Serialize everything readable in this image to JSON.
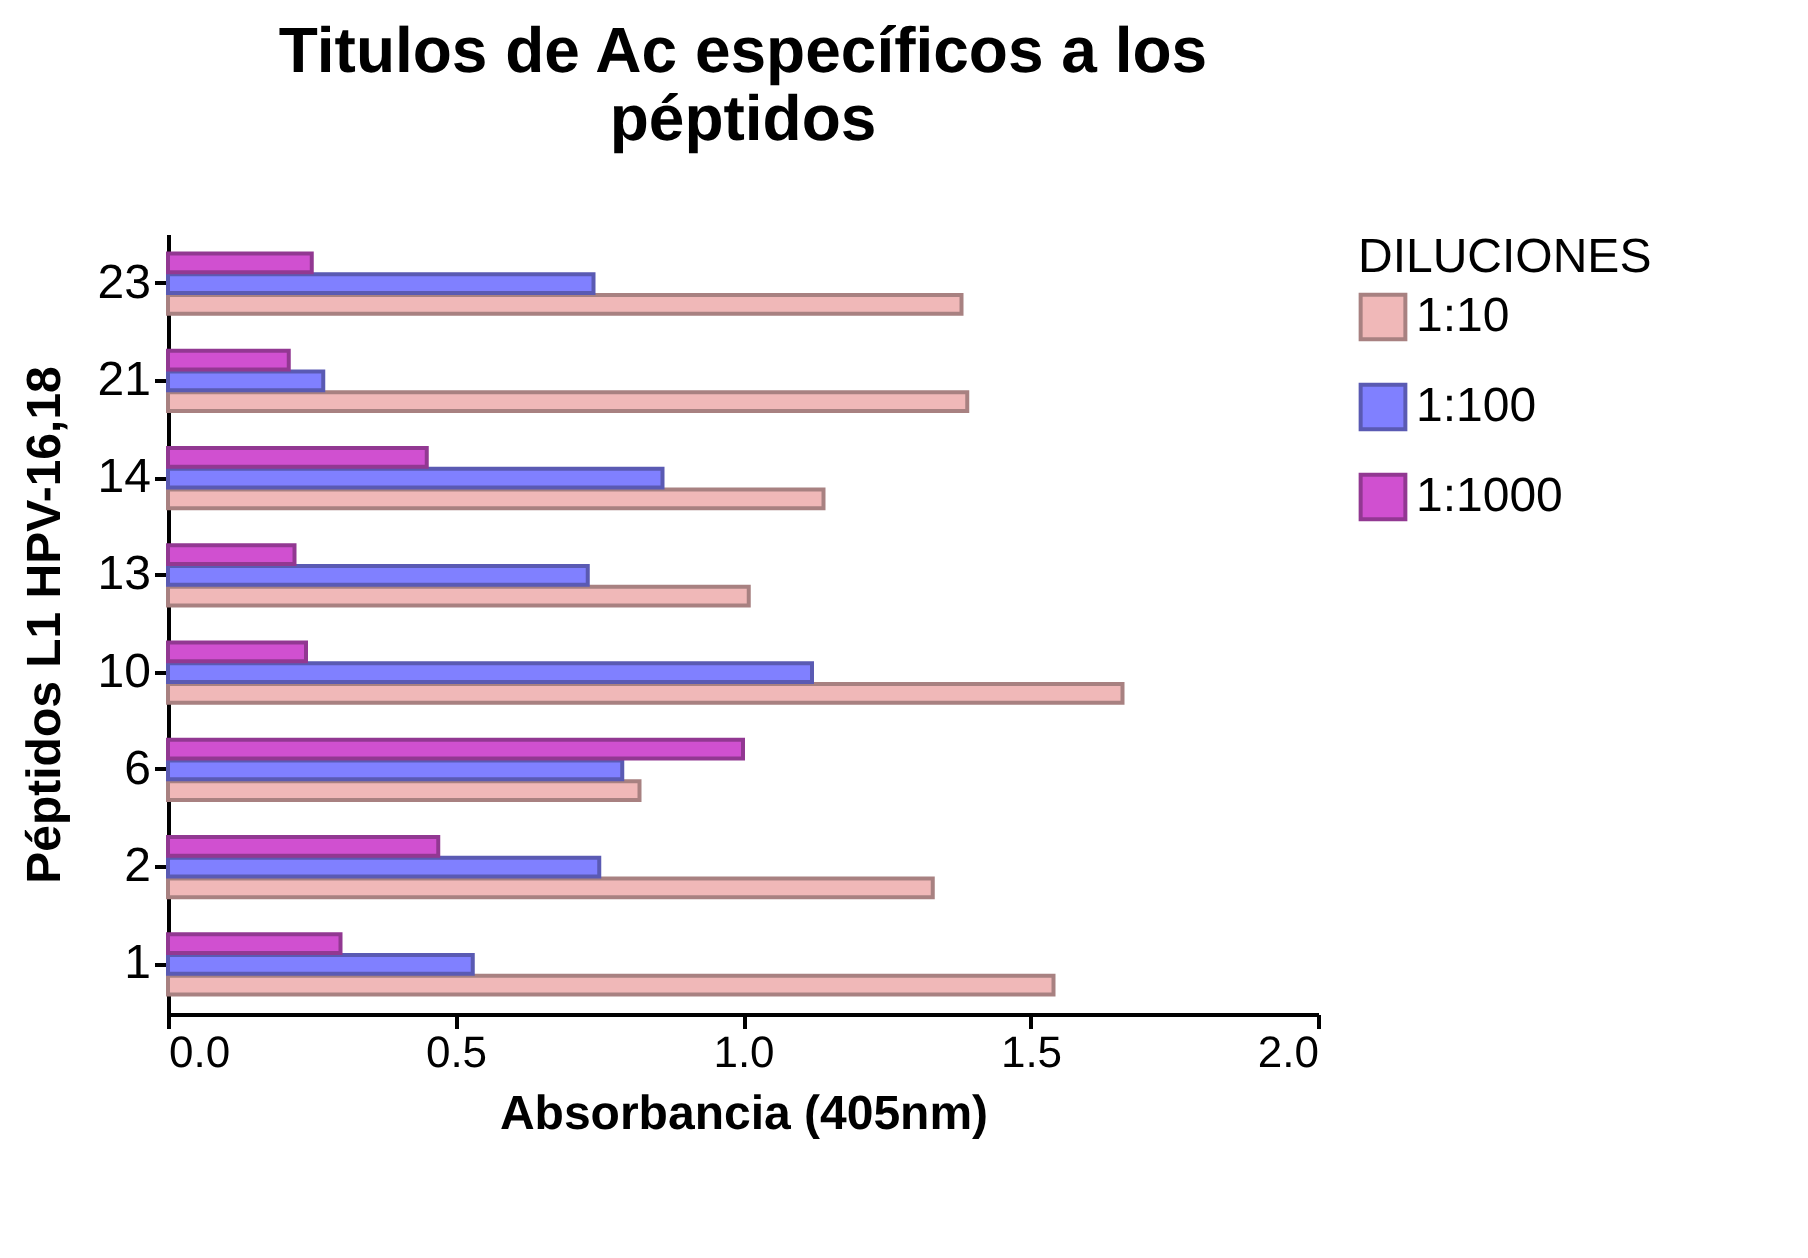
{
  "chart_data": {
    "type": "bar",
    "orientation": "horizontal",
    "title": "Titulos de Ac específicos a los péptidos",
    "xlabel": "Absorbancia (405nm)",
    "ylabel": "Péptidos L1 HPV-16,18",
    "legend_title": "DILUCIONES",
    "legend": "top right",
    "grid": false,
    "categories": [
      "23",
      "21",
      "14",
      "13",
      "10",
      "6",
      "2",
      "1"
    ],
    "series": [
      {
        "name": "1:10",
        "color": "#f0b8b8",
        "values": [
          1.38,
          1.39,
          1.14,
          1.01,
          1.66,
          0.82,
          1.33,
          1.54
        ]
      },
      {
        "name": "1:100",
        "color": "#8080ff",
        "values": [
          0.74,
          0.27,
          0.86,
          0.73,
          1.12,
          0.79,
          0.75,
          0.53
        ]
      },
      {
        "name": "1:1000",
        "color": "#d050d0",
        "values": [
          0.25,
          0.21,
          0.45,
          0.22,
          0.24,
          1.0,
          0.47,
          0.3
        ]
      }
    ],
    "xlim": [
      0,
      2
    ],
    "xticks": [
      {
        "value": 0,
        "label": "0.0"
      },
      {
        "value": 0.5,
        "label": "0.5"
      },
      {
        "value": 1,
        "label": "1.0"
      },
      {
        "value": 1.5,
        "label": "1.5"
      },
      {
        "value": 2,
        "label": "2.0"
      }
    ]
  }
}
